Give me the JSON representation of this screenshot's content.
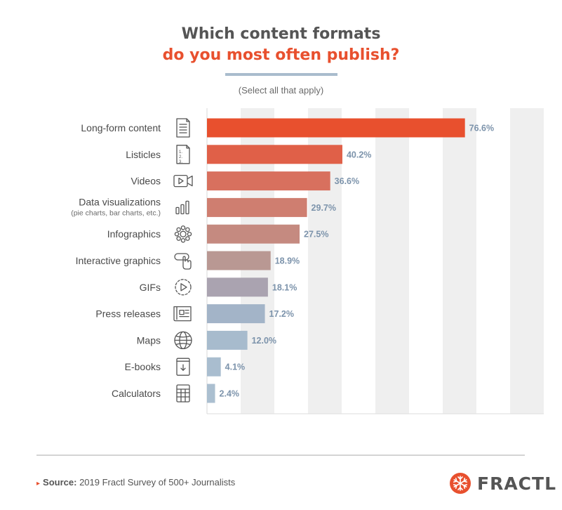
{
  "header": {
    "title_line1": "Which content formats",
    "title_line2": "do you most often publish?",
    "subtitle": "(Select all that apply)"
  },
  "footer": {
    "source_label": "Source:",
    "source_text": "2019 Fractl Survey of 500+ Journalists",
    "logo_text": "FRACTL"
  },
  "colors": {
    "accent": "#e8502e",
    "text": "#555555",
    "value_label": "#7c93ab",
    "gridband": "#efefef",
    "bar_gradient": [
      "#e8502e",
      "#e06048",
      "#d8705e",
      "#cf7e70",
      "#c58a80",
      "#b99893",
      "#aaa3b0",
      "#a3b4c8",
      "#a7bbcd",
      "#a9bdcf",
      "#abbfd0"
    ]
  },
  "chart_data": {
    "type": "bar",
    "orientation": "horizontal",
    "title": "Which content formats do you most often publish?",
    "subtitle": "(Select all that apply)",
    "xlim": [
      0,
      100
    ],
    "value_suffix": "%",
    "grid": "alternating vertical bands",
    "categories": [
      {
        "label": "Long-form content",
        "sublabel": "",
        "icon": "document-icon",
        "value": 76.6,
        "value_label": "76.6%"
      },
      {
        "label": "Listicles",
        "sublabel": "",
        "icon": "numbered-list-icon",
        "value": 40.2,
        "value_label": "40.2%"
      },
      {
        "label": "Videos",
        "sublabel": "",
        "icon": "video-camera-icon",
        "value": 36.6,
        "value_label": "36.6%"
      },
      {
        "label": "Data visualizations",
        "sublabel": "(pie charts, bar charts, etc.)",
        "icon": "bar-chart-icon",
        "value": 29.7,
        "value_label": "29.7%"
      },
      {
        "label": "Infographics",
        "sublabel": "",
        "icon": "infographic-icon",
        "value": 27.5,
        "value_label": "27.5%"
      },
      {
        "label": "Interactive graphics",
        "sublabel": "",
        "icon": "hand-pointer-icon",
        "value": 18.9,
        "value_label": "18.9%"
      },
      {
        "label": "GIFs",
        "sublabel": "",
        "icon": "play-circle-icon",
        "value": 18.1,
        "value_label": "18.1%"
      },
      {
        "label": "Press releases",
        "sublabel": "",
        "icon": "newspaper-icon",
        "value": 17.2,
        "value_label": "17.2%"
      },
      {
        "label": "Maps",
        "sublabel": "",
        "icon": "globe-icon",
        "value": 12.0,
        "value_label": "12.0%"
      },
      {
        "label": "E-books",
        "sublabel": "",
        "icon": "ebook-icon",
        "value": 4.1,
        "value_label": "4.1%"
      },
      {
        "label": "Calculators",
        "sublabel": "",
        "icon": "calculator-icon",
        "value": 2.4,
        "value_label": "2.4%"
      }
    ]
  }
}
